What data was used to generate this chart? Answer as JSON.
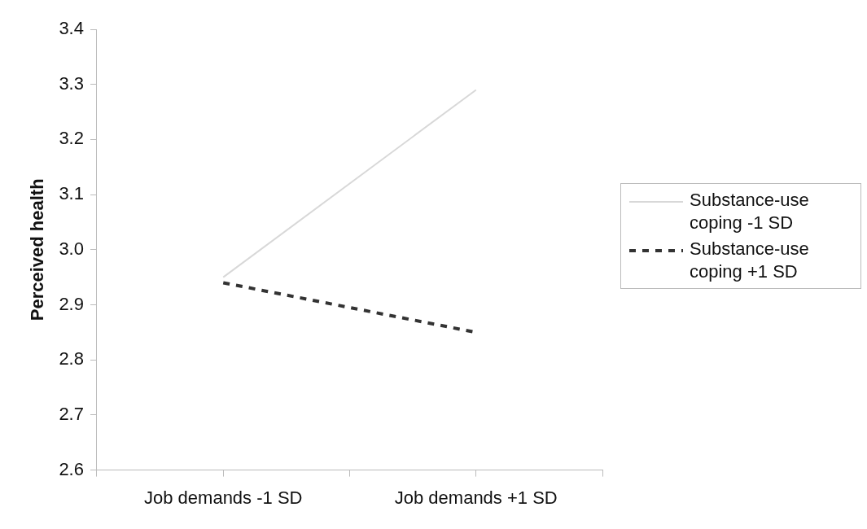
{
  "chart_data": {
    "type": "line",
    "ylabel": "Perceived health",
    "categories": [
      null,
      "Job demands -1 SD",
      null,
      "Job demands +1 SD",
      null
    ],
    "ylim": [
      2.6,
      3.4
    ],
    "yticks": [
      {
        "value": 2.6,
        "label": "2.6"
      },
      {
        "value": 2.7,
        "label": "2.7"
      },
      {
        "value": 2.8,
        "label": "2.8"
      },
      {
        "value": 2.9,
        "label": "2.9"
      },
      {
        "value": 3.0,
        "label": "3.0"
      },
      {
        "value": 3.1,
        "label": "3.1"
      },
      {
        "value": 3.2,
        "label": "3.2"
      },
      {
        "value": 3.3,
        "label": "3.3"
      },
      {
        "value": 3.4,
        "label": "3.4"
      }
    ],
    "series": [
      {
        "name": "Substance-use coping -1 SD",
        "color": "#d8d8d8",
        "line_style": "solid",
        "values": [
          null,
          2.95,
          null,
          3.29,
          null
        ]
      },
      {
        "name": "Substance-use coping +1 SD",
        "color": "#333333",
        "line_style": "dashed",
        "values": [
          null,
          2.94,
          null,
          2.85,
          null
        ]
      }
    ],
    "grid": false,
    "legend": "right",
    "marker": "none"
  }
}
